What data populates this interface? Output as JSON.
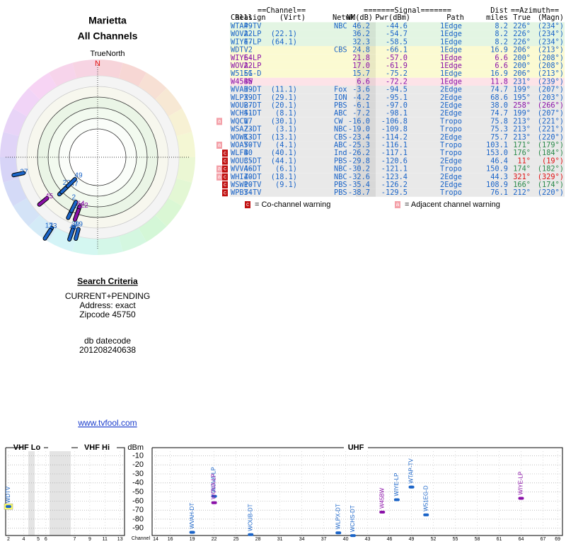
{
  "header": {
    "title": "Marietta",
    "subtitle": "All Channels",
    "north_label": "TrueNorth",
    "north_mark": "N"
  },
  "table": {
    "group_headers": [
      "==Channel==",
      "=======Signal=======",
      "Dist",
      "==Azimuth=="
    ],
    "columns": [
      "Callsign",
      "Real",
      "(Virt)",
      "Netwk",
      "NM(dB)",
      "Pwr(dBm)",
      "Path",
      "miles",
      "True",
      "(Magn)"
    ],
    "rows": [
      {
        "cells": [
          "WTAP-TV",
          "49",
          "",
          "NBC",
          "46.2",
          "-44.6",
          "1Edge",
          "8.2",
          "226°",
          "(234°)"
        ],
        "color": "#1a64c8",
        "bg": "#e3f5e3",
        "az_color": "#1a64c8",
        "warn": []
      },
      {
        "cells": [
          "WOVA-LP",
          "22",
          "(22.1)",
          "",
          "36.2",
          "-54.7",
          "1Edge",
          "8.2",
          "226°",
          "(234°)"
        ],
        "color": "#1a64c8",
        "bg": "#e3f5e3",
        "az_color": "#1a64c8",
        "warn": []
      },
      {
        "cells": [
          "WIYE-LP",
          "47",
          "(64.1)",
          "",
          "32.3",
          "-58.5",
          "1Edge",
          "8.2",
          "226°",
          "(234°)"
        ],
        "color": "#1a64c8",
        "bg": "#e3f5e3",
        "az_color": "#1a64c8",
        "warn": []
      },
      {
        "cells": [
          "WDTV",
          "2",
          "",
          "CBS",
          "24.8",
          "-66.1",
          "1Edge",
          "16.9",
          "206°",
          "(213°)"
        ],
        "color": "#1a64c8",
        "bg": "#fbfad2",
        "az_color": "#1a64c8",
        "warn": []
      },
      {
        "cells": [
          "WIYE-LP",
          "64",
          "",
          "",
          "21.8",
          "-57.0",
          "1Edge",
          "6.6",
          "200°",
          "(208°)"
        ],
        "color": "#8a10a8",
        "bg": "#fbfad2",
        "az_color": "#1a64c8",
        "warn": []
      },
      {
        "cells": [
          "WOVA-LP",
          "22",
          "",
          "",
          "17.0",
          "-61.9",
          "1Edge",
          "6.6",
          "200°",
          "(208°)"
        ],
        "color": "#8a10a8",
        "bg": "#fbfad2",
        "az_color": "#1a64c8",
        "warn": []
      },
      {
        "cells": [
          "W51EG-D",
          "51",
          "",
          "",
          "15.7",
          "-75.2",
          "1Edge",
          "16.9",
          "206°",
          "(213°)"
        ],
        "color": "#1a64c8",
        "bg": "#fbfad2",
        "az_color": "#1a64c8",
        "warn": []
      },
      {
        "cells": [
          "W45BW",
          "45",
          "",
          "",
          "6.6",
          "-72.2",
          "1Edge",
          "11.8",
          "231°",
          "(239°)"
        ],
        "color": "#8a10a8",
        "bg": "#fde3e8",
        "az_color": "#1a64c8",
        "warn": []
      },
      {
        "cells": [
          "WVAH-DT",
          "19",
          "(11.1)",
          "Fox",
          "-3.6",
          "-94.5",
          "2Edge",
          "74.7",
          "199°",
          "(207°)"
        ],
        "color": "#1a64c8",
        "bg": "#e9e9e9",
        "az_color": "#1a64c8",
        "warn": []
      },
      {
        "cells": [
          "WLPX-DT",
          "39",
          "(29.1)",
          "ION",
          "-4.2",
          "-95.1",
          "2Edge",
          "68.6",
          "195°",
          "(203°)"
        ],
        "color": "#1a64c8",
        "bg": "#e9e9e9",
        "az_color": "#1a64c8",
        "warn": []
      },
      {
        "cells": [
          "WOUB-DT",
          "27",
          "(20.1)",
          "PBS",
          "-6.1",
          "-97.0",
          "2Edge",
          "38.0",
          "258°",
          "(266°)"
        ],
        "color": "#1a64c8",
        "bg": "#e9e9e9",
        "az_color": "#8a10a8",
        "warn": []
      },
      {
        "cells": [
          "WCHS-DT",
          "41",
          "(8.1)",
          "ABC",
          "-7.2",
          "-98.1",
          "2Edge",
          "74.7",
          "199°",
          "(207°)"
        ],
        "color": "#1a64c8",
        "bg": "#e9e9e9",
        "az_color": "#1a64c8",
        "warn": []
      },
      {
        "cells": [
          "WQCW",
          "17",
          "(30.1)",
          "CW",
          "-16.0",
          "-106.8",
          "Tropo",
          "75.8",
          "213°",
          "(221°)"
        ],
        "color": "#1a64c8",
        "bg": "#e9e9e9",
        "az_color": "#1a64c8",
        "warn": [
          "a"
        ]
      },
      {
        "cells": [
          "WSAZ-DT",
          "23",
          "(3.1)",
          "NBC",
          "-19.0",
          "-109.8",
          "Tropo",
          "75.3",
          "213°",
          "(221°)"
        ],
        "color": "#1a64c8",
        "bg": "#e9e9e9",
        "az_color": "#1a64c8",
        "warn": []
      },
      {
        "cells": [
          "WOWK-DT",
          "13",
          "(13.1)",
          "CBS",
          "-23.4",
          "-114.2",
          "2Edge",
          "75.7",
          "213°",
          "(220°)"
        ],
        "color": "#1a64c8",
        "bg": "#e9e9e9",
        "az_color": "#1a64c8",
        "warn": []
      },
      {
        "cells": [
          "WOAY-TV",
          "50",
          "(4.1)",
          "ABC",
          "-25.3",
          "-116.1",
          "Tropo",
          "103.1",
          "171°",
          "(179°)"
        ],
        "color": "#1a64c8",
        "bg": "#e9e9e9",
        "az_color": "#2a8a4a",
        "warn": [
          "a"
        ]
      },
      {
        "cells": [
          "WLFB",
          "40",
          "(40.1)",
          "Ind",
          "-26.2",
          "-117.1",
          "Tropo",
          "153.0",
          "176°",
          "(184°)"
        ],
        "color": "#1a64c8",
        "bg": "#e9e9e9",
        "az_color": "#2a8a4a",
        "warn": [
          "c"
        ]
      },
      {
        "cells": [
          "WOUC-DT",
          "35",
          "(44.1)",
          "PBS",
          "-29.8",
          "-120.6",
          "2Edge",
          "46.4",
          "11°",
          "(19°)"
        ],
        "color": "#1a64c8",
        "bg": "#e9e9e9",
        "az_color": "#e01010",
        "warn": [
          "c"
        ]
      },
      {
        "cells": [
          "WVVA-DT",
          "46",
          "(6.1)",
          "NBC",
          "-30.2",
          "-121.1",
          "Tropo",
          "150.9",
          "174°",
          "(182°)"
        ],
        "color": "#1a64c8",
        "bg": "#e9e9e9",
        "az_color": "#2a8a4a",
        "warn": [
          "a",
          "c"
        ]
      },
      {
        "cells": [
          "WHIZ-DT",
          "40",
          "(18.1)",
          "NBC",
          "-32.6",
          "-123.4",
          "2Edge",
          "44.3",
          "321°",
          "(329°)"
        ],
        "color": "#1a64c8",
        "bg": "#e9e9e9",
        "az_color": "#e01010",
        "warn": [
          "a",
          "c"
        ]
      },
      {
        "cells": [
          "WSWP-TV",
          "10",
          "(9.1)",
          "PBS",
          "-35.4",
          "-126.2",
          "2Edge",
          "108.9",
          "166°",
          "(174°)"
        ],
        "color": "#1a64c8",
        "bg": "#e9e9e9",
        "az_color": "#2a8a4a",
        "warn": [
          "c"
        ]
      },
      {
        "cells": [
          "WPBY-TV",
          "34",
          "",
          "PBS",
          "-38.7",
          "-129.5",
          "Tropo",
          "76.1",
          "212°",
          "(220°)"
        ],
        "color": "#1a64c8",
        "bg": "#e9e9e9",
        "az_color": "#1a64c8",
        "warn": [
          "c"
        ]
      }
    ]
  },
  "legend": {
    "co_mark": "c",
    "co_text": "= Co-channel warning",
    "adj_mark": "a",
    "adj_text": "= Adjacent channel warning"
  },
  "polar": {
    "stations": [
      {
        "label": "27",
        "azimuth": 258,
        "nm": -6.1,
        "color": "#1a64c8"
      },
      {
        "label": "45",
        "azimuth": 231,
        "nm": 6.6,
        "color": "#8a10a8"
      },
      {
        "label": "47",
        "azimuth": 226,
        "nm": 32.3,
        "color": "#1a64c8"
      },
      {
        "label": "22",
        "azimuth": 226,
        "nm": 36.2,
        "color": "#1a64c8"
      },
      {
        "label": "49",
        "azimuth": 226,
        "nm": 46.2,
        "color": "#1a64c8"
      },
      {
        "label": "51",
        "azimuth": 206,
        "nm": 15.7,
        "color": "#1a64c8"
      },
      {
        "label": "2",
        "azimuth": 206,
        "nm": 24.8,
        "color": "#1a64c8"
      },
      {
        "label": "64",
        "azimuth": 200,
        "nm": 21.8,
        "color": "#8a10a8"
      },
      {
        "label": "22",
        "azimuth": 200,
        "nm": 17.0,
        "color": "#8a10a8"
      },
      {
        "label": "17",
        "azimuth": 213,
        "nm": -16.0,
        "color": "#1a64c8"
      },
      {
        "label": "23",
        "azimuth": 213,
        "nm": -19.0,
        "color": "#1a64c8"
      },
      {
        "label": "19",
        "azimuth": 199,
        "nm": -3.6,
        "color": "#1a64c8"
      },
      {
        "label": "39",
        "azimuth": 195,
        "nm": -4.2,
        "color": "#1a64c8"
      },
      {
        "label": "41",
        "azimuth": 199,
        "nm": -7.2,
        "color": "#1a64c8"
      }
    ]
  },
  "search": {
    "title": "Search Criteria",
    "lines": [
      "CURRENT+PENDING",
      "Address: exact",
      "Zipcode 45750"
    ],
    "datecode_label": "db datecode",
    "datecode": "201208240638"
  },
  "link": "www.tvfool.com",
  "spectrum": {
    "vhf_lo": "VHF Lo",
    "vhf_hi": "VHF Hi",
    "uhf": "UHF",
    "y_label": "dBm",
    "x_label": "Channel",
    "ylim": [
      -5,
      -98
    ],
    "yticks": [
      -10,
      -20,
      -30,
      -40,
      -50,
      -60,
      -70,
      -80,
      -90
    ],
    "vhf_xticks": [
      2,
      4,
      5,
      6,
      7,
      9,
      11,
      13
    ],
    "uhf_xticks": [
      14,
      16,
      19,
      22,
      25,
      28,
      31,
      34,
      37,
      40,
      43,
      46,
      49,
      52,
      55,
      58,
      61,
      64,
      67,
      69
    ],
    "stations": [
      {
        "name": "WDTV",
        "channel": 2,
        "dbm": -66.1,
        "color": "#1a64c8"
      },
      {
        "name": "WVAH-DT",
        "channel": 19,
        "dbm": -94.5,
        "color": "#1a64c8"
      },
      {
        "name": "WOVA-LP",
        "channel": 22,
        "dbm": -54.7,
        "color": "#1a64c8"
      },
      {
        "name": "WOVA-LP",
        "channel": 22,
        "dbm": -61.9,
        "color": "#8a10a8"
      },
      {
        "name": "WOUB-DT",
        "channel": 27,
        "dbm": -97.0,
        "color": "#1a64c8"
      },
      {
        "name": "WLPX-DT",
        "channel": 39,
        "dbm": -95.1,
        "color": "#1a64c8"
      },
      {
        "name": "WCHS-DT",
        "channel": 41,
        "dbm": -98.1,
        "color": "#1a64c8"
      },
      {
        "name": "W45BW",
        "channel": 45,
        "dbm": -72.2,
        "color": "#8a10a8"
      },
      {
        "name": "WIYE-LP",
        "channel": 47,
        "dbm": -58.5,
        "color": "#1a64c8"
      },
      {
        "name": "WTAP-TV",
        "channel": 49,
        "dbm": -44.6,
        "color": "#1a64c8"
      },
      {
        "name": "W51EG-D",
        "channel": 51,
        "dbm": -75.2,
        "color": "#1a64c8"
      },
      {
        "name": "WIYE-LP",
        "channel": 64,
        "dbm": -57.0,
        "color": "#8a10a8"
      }
    ]
  }
}
